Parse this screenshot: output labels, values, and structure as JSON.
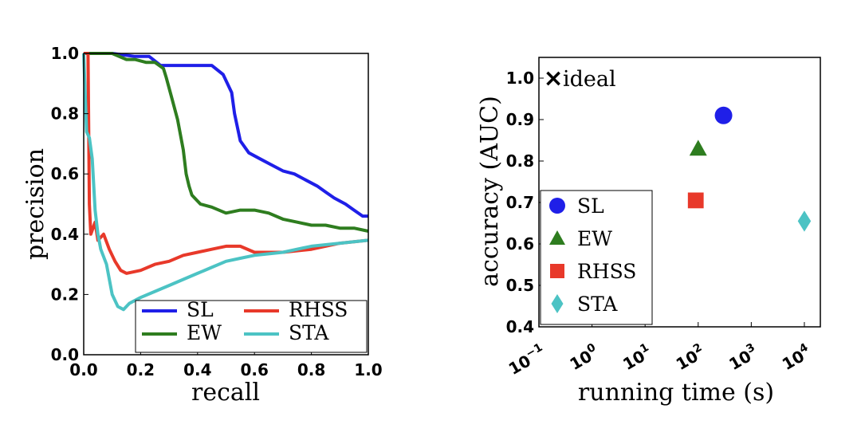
{
  "chart_data": [
    {
      "type": "line",
      "title": "",
      "xlabel": "recall",
      "ylabel": "precision",
      "xlim": [
        0.0,
        1.0
      ],
      "ylim": [
        0.0,
        1.0
      ],
      "xticks": [
        "0.0",
        "0.2",
        "0.4",
        "0.6",
        "0.8",
        "1.0"
      ],
      "yticks": [
        "0.0",
        "0.2",
        "0.4",
        "0.6",
        "0.8",
        "1.0"
      ],
      "grid": false,
      "legend_position": "bottom-right",
      "series": [
        {
          "name": "SL",
          "color": "#1f1fe8",
          "x": [
            0.0,
            0.02,
            0.05,
            0.1,
            0.18,
            0.23,
            0.27,
            0.32,
            0.4,
            0.45,
            0.49,
            0.52,
            0.53,
            0.55,
            0.58,
            0.62,
            0.66,
            0.7,
            0.74,
            0.78,
            0.82,
            0.85,
            0.88,
            0.92,
            0.95,
            0.98,
            1.0
          ],
          "y": [
            1.0,
            1.0,
            1.0,
            1.0,
            0.99,
            0.99,
            0.96,
            0.96,
            0.96,
            0.96,
            0.93,
            0.87,
            0.8,
            0.71,
            0.67,
            0.65,
            0.63,
            0.61,
            0.6,
            0.58,
            0.56,
            0.54,
            0.52,
            0.5,
            0.48,
            0.46,
            0.46
          ]
        },
        {
          "name": "EW",
          "color": "#2e7d1f",
          "x": [
            0.0,
            0.02,
            0.05,
            0.1,
            0.15,
            0.18,
            0.22,
            0.25,
            0.28,
            0.29,
            0.31,
            0.33,
            0.35,
            0.36,
            0.37,
            0.38,
            0.41,
            0.45,
            0.5,
            0.55,
            0.6,
            0.65,
            0.7,
            0.75,
            0.8,
            0.85,
            0.9,
            0.95,
            1.0
          ],
          "y": [
            1.0,
            1.0,
            1.0,
            1.0,
            0.98,
            0.98,
            0.97,
            0.97,
            0.95,
            0.92,
            0.85,
            0.78,
            0.68,
            0.6,
            0.56,
            0.53,
            0.5,
            0.49,
            0.47,
            0.48,
            0.48,
            0.47,
            0.45,
            0.44,
            0.43,
            0.43,
            0.42,
            0.42,
            0.41
          ]
        },
        {
          "name": "RHSS",
          "color": "#e8392a",
          "x": [
            0.0,
            0.015,
            0.02,
            0.025,
            0.04,
            0.05,
            0.07,
            0.09,
            0.11,
            0.13,
            0.15,
            0.2,
            0.25,
            0.3,
            0.35,
            0.4,
            0.45,
            0.5,
            0.55,
            0.6,
            0.7,
            0.8,
            0.9,
            1.0
          ],
          "y": [
            1.0,
            1.0,
            0.5,
            0.4,
            0.44,
            0.38,
            0.4,
            0.35,
            0.31,
            0.28,
            0.27,
            0.28,
            0.3,
            0.31,
            0.33,
            0.34,
            0.35,
            0.36,
            0.36,
            0.34,
            0.34,
            0.35,
            0.37,
            0.38
          ]
        },
        {
          "name": "STA",
          "color": "#4cc3c4",
          "x": [
            0.0,
            0.01,
            0.02,
            0.03,
            0.04,
            0.05,
            0.06,
            0.08,
            0.1,
            0.12,
            0.14,
            0.16,
            0.2,
            0.25,
            0.3,
            0.35,
            0.4,
            0.45,
            0.5,
            0.55,
            0.6,
            0.7,
            0.8,
            0.9,
            1.0
          ],
          "y": [
            1.0,
            0.74,
            0.72,
            0.65,
            0.48,
            0.4,
            0.35,
            0.3,
            0.2,
            0.16,
            0.15,
            0.17,
            0.19,
            0.21,
            0.23,
            0.25,
            0.27,
            0.29,
            0.31,
            0.32,
            0.33,
            0.34,
            0.36,
            0.37,
            0.38
          ]
        }
      ]
    },
    {
      "type": "scatter",
      "title": "",
      "xlabel": "running time (s)",
      "ylabel": "accuracy (AUC)",
      "xscale": "log",
      "xlim": [
        0.1,
        20000
      ],
      "ylim": [
        0.4,
        1.05
      ],
      "xticks": [
        {
          "base": "10",
          "exp": "−1",
          "value": 0.1
        },
        {
          "base": "10",
          "exp": "0",
          "value": 1
        },
        {
          "base": "10",
          "exp": "1",
          "value": 10
        },
        {
          "base": "10",
          "exp": "2",
          "value": 100
        },
        {
          "base": "10",
          "exp": "3",
          "value": 1000
        },
        {
          "base": "10",
          "exp": "4",
          "value": 10000
        }
      ],
      "yticks": [
        "0.4",
        "0.5",
        "0.6",
        "0.7",
        "0.8",
        "0.9",
        "1.0"
      ],
      "grid": false,
      "legend_position": "bottom-left",
      "annotation": {
        "label": "ideal",
        "marker": "×",
        "x": 0.2,
        "y": 1.0
      },
      "series": [
        {
          "name": "SL",
          "color": "#1f1fe8",
          "marker": "circle",
          "x": [
            300
          ],
          "y": [
            0.91
          ]
        },
        {
          "name": "EW",
          "color": "#2e7d1f",
          "marker": "triangle",
          "x": [
            100
          ],
          "y": [
            0.83
          ]
        },
        {
          "name": "RHSS",
          "color": "#e8392a",
          "marker": "square",
          "x": [
            90
          ],
          "y": [
            0.705
          ]
        },
        {
          "name": "STA",
          "color": "#4cc3c4",
          "marker": "diamond",
          "x": [
            10000
          ],
          "y": [
            0.655
          ]
        }
      ]
    }
  ]
}
